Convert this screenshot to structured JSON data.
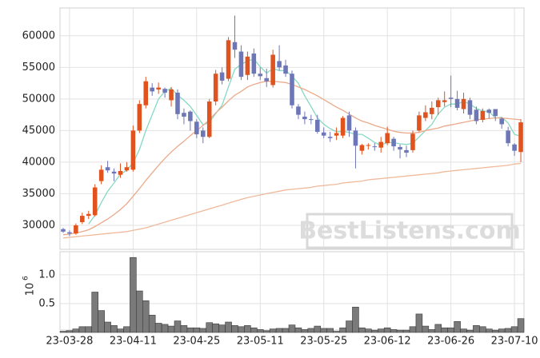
{
  "chart_data": {
    "type": "candlestick",
    "categories": [
      null,
      "23-03-28",
      null,
      null,
      null,
      null,
      null,
      null,
      null,
      null,
      null,
      "23-04-11",
      null,
      null,
      null,
      null,
      null,
      null,
      null,
      null,
      null,
      "23-04-25",
      null,
      null,
      null,
      null,
      null,
      null,
      null,
      null,
      null,
      "23-05-11",
      null,
      null,
      null,
      null,
      null,
      null,
      null,
      null,
      null,
      "23-05-25",
      null,
      null,
      null,
      null,
      null,
      null,
      null,
      null,
      null,
      "23-06-12",
      null,
      null,
      null,
      null,
      null,
      null,
      null,
      null,
      null,
      "23-06-26",
      null,
      null,
      null,
      null,
      null,
      null,
      null,
      null,
      null,
      "23-07-10",
      null
    ],
    "open": [
      29400,
      28900,
      28700,
      30500,
      31500,
      31600,
      37000,
      39200,
      38500,
      38000,
      38700,
      38800,
      45000,
      49000,
      51800,
      51500,
      51600,
      49800,
      51000,
      47800,
      48000,
      46400,
      45000,
      44000,
      49600,
      54200,
      53200,
      59000,
      57500,
      53800,
      57200,
      54000,
      53300,
      52200,
      56000,
      55300,
      54000,
      48800,
      47200,
      46800,
      46700,
      44700,
      44000,
      44200,
      44200,
      47400,
      45000,
      41800,
      42600,
      42500,
      42300,
      43000,
      43700,
      42400,
      41900,
      41900,
      45000,
      47000,
      47600,
      48700,
      49500,
      50200,
      50000,
      48400,
      49800,
      48300,
      46700,
      48300,
      48400,
      46900,
      45000,
      42800,
      41600
    ],
    "high": [
      29600,
      29200,
      30300,
      32000,
      32300,
      36500,
      39500,
      40200,
      39000,
      39800,
      40000,
      45800,
      49800,
      53500,
      52500,
      52600,
      51800,
      51900,
      51500,
      48500,
      48200,
      46800,
      45500,
      50000,
      54600,
      55000,
      59800,
      63200,
      58500,
      57500,
      58000,
      55000,
      54800,
      57800,
      58500,
      56200,
      54500,
      49200,
      48000,
      47500,
      47500,
      45500,
      44800,
      45500,
      47300,
      48000,
      45500,
      42900,
      43000,
      43000,
      44000,
      45600,
      44000,
      42800,
      42600,
      45000,
      48000,
      49000,
      49600,
      50200,
      51200,
      53700,
      51300,
      51000,
      50200,
      48800,
      48500,
      48500,
      48400,
      47100,
      45600,
      43000,
      46800
    ],
    "low": [
      28800,
      28300,
      28500,
      30200,
      31000,
      31400,
      36500,
      38300,
      37000,
      37500,
      38500,
      38500,
      44600,
      48500,
      50500,
      50800,
      50200,
      48800,
      46800,
      46000,
      45000,
      43800,
      43000,
      43800,
      49000,
      52300,
      52800,
      56500,
      53000,
      53000,
      53500,
      53000,
      51900,
      51800,
      54500,
      53500,
      48500,
      46800,
      46000,
      46000,
      44500,
      43800,
      43200,
      43500,
      43800,
      44000,
      39000,
      41200,
      42000,
      41800,
      41500,
      42700,
      41800,
      40600,
      40800,
      41500,
      44800,
      46500,
      46800,
      47500,
      48800,
      48700,
      48200,
      47700,
      46800,
      46000,
      46300,
      46900,
      46500,
      45300,
      42500,
      41000,
      40000
    ],
    "close": [
      29000,
      28700,
      30000,
      31500,
      31800,
      36000,
      38800,
      38700,
      38200,
      38600,
      39200,
      45000,
      49200,
      52800,
      51200,
      51800,
      51000,
      51500,
      47600,
      47200,
      46500,
      44400,
      44000,
      49600,
      54000,
      52900,
      59300,
      57800,
      53500,
      56700,
      54000,
      53600,
      52800,
      57000,
      55000,
      54000,
      49000,
      47500,
      46800,
      46700,
      44800,
      44200,
      43800,
      44600,
      47000,
      45000,
      42600,
      42700,
      42700,
      42400,
      43200,
      44600,
      42500,
      42000,
      41500,
      44500,
      47400,
      47900,
      48600,
      49800,
      49800,
      50000,
      48600,
      50000,
      47500,
      46500,
      48100,
      47800,
      47300,
      46000,
      43000,
      41800,
      46300
    ],
    "up_color": "#e0521e",
    "down_color": "#6d77b8",
    "series": [
      {
        "color": "#86d9c4",
        "values": [
          null,
          null,
          null,
          null,
          30200,
          31600,
          33600,
          35400,
          36700,
          38100,
          38700,
          39900,
          42000,
          45000,
          47500,
          50000,
          51200,
          51700,
          50600,
          49800,
          48800,
          47400,
          45900,
          46300,
          47700,
          49000,
          51900,
          54700,
          55500,
          56000,
          56300,
          55100,
          54100,
          54800,
          54500,
          54500,
          53600,
          52500,
          50500,
          48800,
          47000,
          46000,
          45300,
          44800,
          44900,
          44700,
          44400,
          44400,
          43800,
          43100,
          42700,
          43100,
          43100,
          42900,
          42800,
          43000,
          44000,
          45000,
          46000,
          47600,
          48700,
          49200,
          49200,
          49600,
          49200,
          48500,
          48100,
          48000,
          47000,
          47100,
          46200,
          44400,
          44100
        ]
      },
      {
        "color": "#eba98a",
        "values": [
          28500,
          28600,
          28800,
          29000,
          29300,
          29800,
          30400,
          31000,
          31700,
          32500,
          33400,
          34600,
          35800,
          37100,
          38300,
          39500,
          40600,
          41600,
          42500,
          43300,
          44200,
          45000,
          45800,
          46700,
          47800,
          48700,
          49700,
          50600,
          51200,
          51900,
          52300,
          52600,
          52800,
          52800,
          52700,
          52600,
          52300,
          51900,
          51500,
          51000,
          50500,
          49900,
          49300,
          48700,
          48200,
          47600,
          47000,
          46500,
          46200,
          45800,
          45500,
          45200,
          44900,
          44700,
          44600,
          44600,
          44700,
          45000,
          45200,
          45400,
          45700,
          45900,
          46100,
          46300,
          46500,
          46700,
          46800,
          46900,
          47000,
          47000,
          46900,
          46800,
          46700
        ]
      },
      {
        "color": "#efb99a",
        "values": [
          28000,
          28100,
          28200,
          28300,
          28400,
          28500,
          28600,
          28700,
          28800,
          28900,
          29000,
          29200,
          29400,
          29600,
          29900,
          30200,
          30500,
          30800,
          31100,
          31400,
          31700,
          32000,
          32300,
          32600,
          32900,
          33200,
          33500,
          33800,
          34100,
          34400,
          34600,
          34800,
          35000,
          35200,
          35400,
          35600,
          35700,
          35800,
          35900,
          36000,
          36200,
          36300,
          36400,
          36500,
          36700,
          36800,
          36900,
          37000,
          37200,
          37300,
          37400,
          37500,
          37600,
          37700,
          37800,
          37900,
          38000,
          38100,
          38200,
          38300,
          38500,
          38600,
          38700,
          38800,
          38900,
          39000,
          39100,
          39200,
          39300,
          39400,
          39500,
          39700,
          39800
        ]
      }
    ],
    "ylim": [
      26200,
      64400
    ],
    "yticks": [
      30000,
      35000,
      40000,
      45000,
      50000,
      55000,
      60000
    ],
    "grid": true,
    "watermark": "BestListens.com",
    "volume": {
      "type": "bar",
      "color": "#7a7a7a",
      "values": [
        0.02,
        0.03,
        0.06,
        0.1,
        0.1,
        0.7,
        0.38,
        0.18,
        0.12,
        0.06,
        0.1,
        1.3,
        0.72,
        0.55,
        0.3,
        0.16,
        0.14,
        0.11,
        0.2,
        0.12,
        0.08,
        0.08,
        0.07,
        0.17,
        0.15,
        0.13,
        0.18,
        0.12,
        0.1,
        0.12,
        0.08,
        0.05,
        0.03,
        0.06,
        0.07,
        0.07,
        0.13,
        0.08,
        0.05,
        0.07,
        0.11,
        0.07,
        0.07,
        0.02,
        0.08,
        0.2,
        0.44,
        0.08,
        0.06,
        0.04,
        0.06,
        0.08,
        0.05,
        0.04,
        0.04,
        0.1,
        0.32,
        0.11,
        0.05,
        0.14,
        0.08,
        0.08,
        0.19,
        0.06,
        0.04,
        0.12,
        0.1,
        0.06,
        0.04,
        0.06,
        0.07,
        0.1,
        0.24
      ],
      "ylim": [
        0,
        1.4
      ],
      "yticks": [
        0.5,
        {
          "value": 1,
          "label": "1.0"
        }
      ],
      "ylabel_base": "10",
      "ylabel_exponent": "6"
    }
  }
}
